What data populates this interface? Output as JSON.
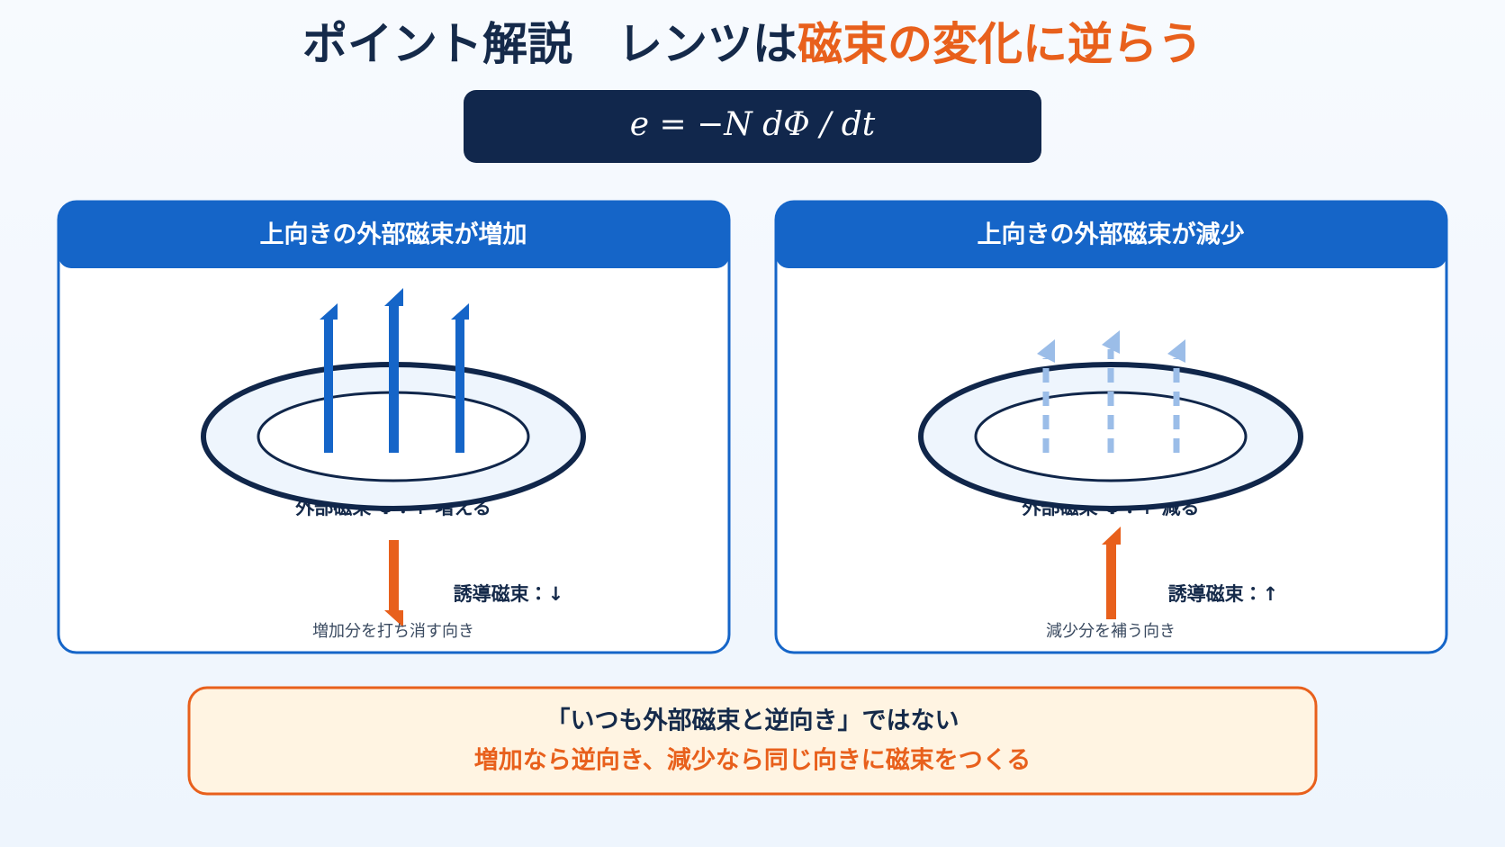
{
  "title": {
    "lead": "ポイント解説　レンツは",
    "highlight": "磁束の変化に逆らう"
  },
  "formula": "e = −N dΦ / dt",
  "panels": [
    {
      "header": "上向きの外部磁束が増加",
      "flux_label": "外部磁束 Φ：↑ 増える",
      "induced_label": "誘導磁束：↓",
      "caption": "増加分を打ち消す向き"
    },
    {
      "header": "上向きの外部磁束が減少",
      "flux_label": "外部磁束 Φ：↑ 減る",
      "induced_label": "誘導磁束：↑",
      "caption": "減少分を補う向き"
    }
  ],
  "footer": {
    "line1": "「いつも外部磁束と逆向き」ではない",
    "line2": "増加なら逆向き、減少なら同じ向きに磁束をつくる"
  }
}
